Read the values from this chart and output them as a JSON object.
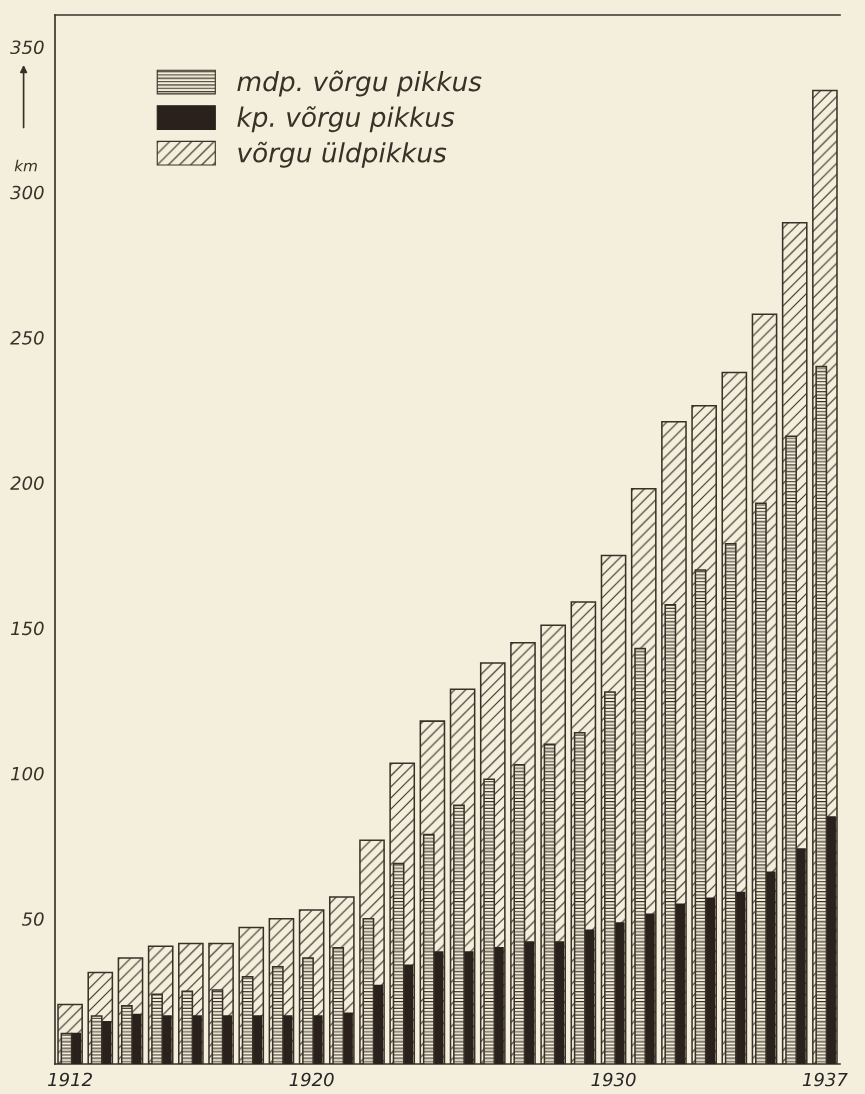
{
  "chart_data": {
    "type": "bar",
    "ylabel": "km",
    "categories": [
      "1912",
      null,
      null,
      null,
      null,
      null,
      null,
      null,
      "1920",
      null,
      null,
      null,
      null,
      null,
      null,
      null,
      null,
      null,
      "1930",
      null,
      null,
      null,
      null,
      null,
      null,
      "1937"
    ],
    "series": [
      {
        "name": "mdp. võrgu pikkus",
        "color": "#3a3028",
        "values": [
          10.5,
          16.5,
          20,
          24,
          25,
          25.5,
          30,
          33.5,
          36.5,
          40,
          50,
          69,
          79,
          89,
          98,
          103,
          110,
          114,
          128,
          143,
          158,
          170,
          179,
          193,
          216,
          240
        ]
      },
      {
        "name": "kp. võrgu pikkus",
        "color": "#2b211c",
        "values": [
          10.5,
          14.5,
          17,
          16.5,
          16.5,
          16.5,
          16.5,
          16.5,
          16.5,
          17.5,
          27,
          34,
          38.5,
          38.5,
          40,
          42,
          42,
          46,
          48.5,
          51.5,
          55,
          57,
          59,
          66,
          74,
          85
        ]
      },
      {
        "name": "võrgu üldpikkus",
        "color": "#3a3028",
        "values": [
          20.5,
          31.5,
          36.5,
          40.5,
          41.5,
          41.5,
          47,
          50,
          53,
          57.5,
          77,
          103.5,
          118,
          129,
          138,
          145,
          151,
          159,
          175,
          198,
          221,
          226.5,
          238,
          258,
          289.5,
          335
        ]
      }
    ],
    "ylim": [
      0,
      361
    ],
    "yticks": [
      50,
      100,
      150,
      200,
      250,
      300,
      350
    ],
    "legend": "top left",
    "grid": false
  }
}
